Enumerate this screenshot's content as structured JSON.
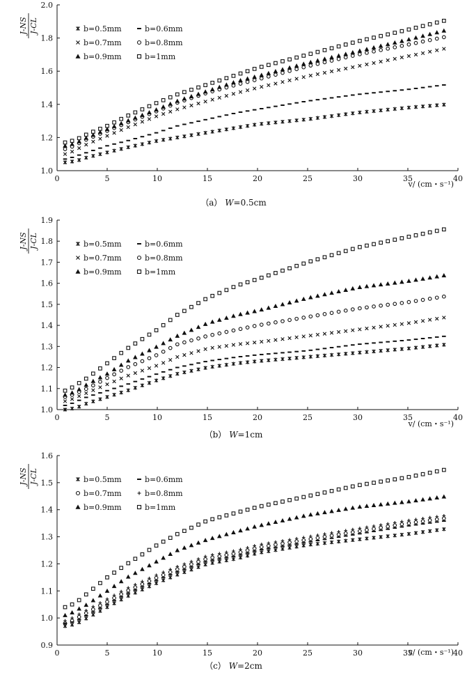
{
  "chart_data": [
    {
      "type": "scatter",
      "panel": "a",
      "caption_label": "（a）",
      "caption_var": "W",
      "caption_value": "=0.5cm",
      "ylabel_num": "J-NS",
      "ylabel_den": "J-CL",
      "xlabel": "v/ (cm・s⁻¹)",
      "xlim": [
        0,
        40
      ],
      "ylim": [
        1.0,
        2.0
      ],
      "xticks": [
        "0",
        "5",
        "10",
        "15",
        "20",
        "25",
        "30",
        "35",
        "40"
      ],
      "yticks": [
        "1.0",
        "1.2",
        "1.4",
        "1.6",
        "1.8",
        "2.0"
      ],
      "ytick_values": [
        1.0,
        1.2,
        1.4,
        1.6,
        1.8,
        2.0
      ],
      "legend_position": "top-left",
      "legend_columns": 2,
      "series": [
        {
          "name": "b=0.5mm",
          "marker": "asterisk",
          "x": [
            1,
            2,
            3,
            5,
            7,
            10,
            12,
            15,
            18,
            20,
            25,
            30,
            35,
            39
          ],
          "y": [
            1.05,
            1.06,
            1.08,
            1.11,
            1.14,
            1.18,
            1.2,
            1.23,
            1.26,
            1.28,
            1.31,
            1.35,
            1.38,
            1.4
          ]
        },
        {
          "name": "b=0.6mm",
          "marker": "dash",
          "x": [
            1,
            2,
            3,
            5,
            7,
            10,
            12,
            15,
            18,
            20,
            25,
            30,
            35,
            39
          ],
          "y": [
            1.07,
            1.09,
            1.11,
            1.15,
            1.18,
            1.23,
            1.27,
            1.31,
            1.35,
            1.37,
            1.42,
            1.46,
            1.49,
            1.52
          ]
        },
        {
          "name": "b=0.7mm",
          "marker": "cross",
          "x": [
            1,
            2,
            3,
            5,
            7,
            10,
            12,
            15,
            18,
            20,
            25,
            30,
            35,
            39
          ],
          "y": [
            1.1,
            1.13,
            1.16,
            1.21,
            1.26,
            1.33,
            1.37,
            1.42,
            1.47,
            1.5,
            1.57,
            1.63,
            1.69,
            1.74
          ]
        },
        {
          "name": "b=0.8mm",
          "marker": "circle",
          "x": [
            1,
            2,
            3,
            5,
            7,
            10,
            12,
            15,
            18,
            20,
            25,
            30,
            35,
            39
          ],
          "y": [
            1.13,
            1.16,
            1.19,
            1.24,
            1.29,
            1.36,
            1.41,
            1.47,
            1.52,
            1.55,
            1.63,
            1.7,
            1.76,
            1.81
          ]
        },
        {
          "name": "b=0.9mm",
          "marker": "triangle",
          "x": [
            1,
            2,
            3,
            5,
            7,
            10,
            12,
            15,
            18,
            20,
            25,
            30,
            35,
            39
          ],
          "y": [
            1.15,
            1.17,
            1.2,
            1.25,
            1.3,
            1.37,
            1.42,
            1.48,
            1.54,
            1.57,
            1.65,
            1.72,
            1.79,
            1.85
          ]
        },
        {
          "name": "b=1mm",
          "marker": "square",
          "x": [
            1,
            2,
            3,
            5,
            7,
            10,
            12,
            15,
            18,
            20,
            25,
            30,
            35,
            39
          ],
          "y": [
            1.17,
            1.19,
            1.22,
            1.27,
            1.33,
            1.41,
            1.46,
            1.52,
            1.58,
            1.62,
            1.7,
            1.78,
            1.85,
            1.91
          ]
        }
      ]
    },
    {
      "type": "scatter",
      "panel": "b",
      "caption_label": "（b）",
      "caption_var": "W",
      "caption_value": "=1cm",
      "ylabel_num": "J-NS",
      "ylabel_den": "J-CL",
      "xlabel": "v/ (cm・s⁻¹)",
      "xlim": [
        0,
        40
      ],
      "ylim": [
        1.0,
        1.9
      ],
      "xticks": [
        "0",
        "5",
        "10",
        "15",
        "20",
        "25",
        "30",
        "35",
        "40"
      ],
      "yticks": [
        "1.0",
        "1.1",
        "1.2",
        "1.3",
        "1.4",
        "1.5",
        "1.6",
        "1.7",
        "1.8",
        "1.9"
      ],
      "ytick_values": [
        1.0,
        1.1,
        1.2,
        1.3,
        1.4,
        1.5,
        1.6,
        1.7,
        1.8,
        1.9
      ],
      "legend_position": "top-left",
      "legend_columns": 2,
      "series": [
        {
          "name": "b=0.5mm",
          "marker": "asterisk",
          "x": [
            1,
            2,
            3,
            5,
            7,
            10,
            12,
            15,
            18,
            20,
            25,
            30,
            35,
            39
          ],
          "y": [
            1.0,
            1.01,
            1.03,
            1.06,
            1.09,
            1.14,
            1.17,
            1.2,
            1.22,
            1.23,
            1.25,
            1.27,
            1.29,
            1.31
          ]
        },
        {
          "name": "b=0.6mm",
          "marker": "dash",
          "x": [
            1,
            2,
            3,
            5,
            7,
            10,
            12,
            15,
            18,
            20,
            25,
            30,
            35,
            39
          ],
          "y": [
            1.02,
            1.04,
            1.06,
            1.09,
            1.12,
            1.17,
            1.2,
            1.23,
            1.25,
            1.26,
            1.28,
            1.31,
            1.33,
            1.35
          ]
        },
        {
          "name": "b=0.7mm",
          "marker": "cross",
          "x": [
            1,
            2,
            3,
            5,
            7,
            10,
            12,
            15,
            18,
            20,
            25,
            30,
            35,
            39
          ],
          "y": [
            1.04,
            1.06,
            1.08,
            1.12,
            1.16,
            1.21,
            1.25,
            1.29,
            1.31,
            1.32,
            1.35,
            1.38,
            1.41,
            1.44
          ]
        },
        {
          "name": "b=0.8mm",
          "marker": "circle",
          "x": [
            1,
            2,
            3,
            5,
            7,
            10,
            12,
            15,
            18,
            20,
            25,
            30,
            35,
            39
          ],
          "y": [
            1.06,
            1.08,
            1.1,
            1.15,
            1.2,
            1.26,
            1.31,
            1.35,
            1.38,
            1.4,
            1.44,
            1.48,
            1.51,
            1.54
          ]
        },
        {
          "name": "b=0.9mm",
          "marker": "triangle",
          "x": [
            1,
            2,
            3,
            5,
            7,
            10,
            12,
            15,
            18,
            20,
            25,
            30,
            35,
            39
          ],
          "y": [
            1.07,
            1.09,
            1.12,
            1.17,
            1.23,
            1.3,
            1.35,
            1.41,
            1.45,
            1.47,
            1.53,
            1.58,
            1.61,
            1.64
          ]
        },
        {
          "name": "b=1mm",
          "marker": "square",
          "x": [
            1,
            2,
            3,
            5,
            7,
            10,
            12,
            15,
            18,
            20,
            25,
            30,
            35,
            39
          ],
          "y": [
            1.09,
            1.12,
            1.15,
            1.22,
            1.29,
            1.38,
            1.45,
            1.53,
            1.59,
            1.62,
            1.7,
            1.77,
            1.82,
            1.86
          ]
        }
      ]
    },
    {
      "type": "scatter",
      "panel": "c",
      "caption_label": "（c）",
      "caption_var": "W",
      "caption_value": "=2cm",
      "ylabel_num": "J-NS",
      "ylabel_den": "J-CL",
      "xlabel": "v/ (cm・s⁻¹)",
      "xlim": [
        0,
        40
      ],
      "ylim": [
        0.9,
        1.6
      ],
      "xticks": [
        "0",
        "5",
        "10",
        "15",
        "20",
        "25",
        "30",
        "35",
        "40"
      ],
      "yticks": [
        "0.9",
        "1.0",
        "1.1",
        "1.2",
        "1.3",
        "1.4",
        "1.5",
        "1.6"
      ],
      "ytick_values": [
        0.9,
        1.0,
        1.1,
        1.2,
        1.3,
        1.4,
        1.5,
        1.6
      ],
      "legend_position": "top-left",
      "legend_columns": 2,
      "series": [
        {
          "name": "b=0.5mm",
          "marker": "asterisk",
          "x": [
            1,
            2,
            3,
            5,
            7,
            10,
            12,
            15,
            18,
            20,
            25,
            30,
            35,
            39
          ],
          "y": [
            0.97,
            0.98,
            1.0,
            1.04,
            1.08,
            1.13,
            1.16,
            1.2,
            1.22,
            1.24,
            1.27,
            1.29,
            1.31,
            1.33
          ]
        },
        {
          "name": "b=0.6mm",
          "marker": "dash",
          "x": [
            1,
            2,
            3,
            5,
            7,
            10,
            12,
            15,
            18,
            20,
            25,
            30,
            35,
            39
          ],
          "y": [
            0.98,
            0.99,
            1.01,
            1.05,
            1.09,
            1.14,
            1.17,
            1.21,
            1.23,
            1.25,
            1.28,
            1.31,
            1.34,
            1.36
          ]
        },
        {
          "name": "b=0.7mm",
          "marker": "circle",
          "x": [
            1,
            2,
            3,
            5,
            7,
            10,
            12,
            15,
            18,
            20,
            25,
            30,
            35,
            39
          ],
          "y": [
            0.98,
            1.0,
            1.02,
            1.06,
            1.1,
            1.15,
            1.18,
            1.22,
            1.24,
            1.26,
            1.29,
            1.32,
            1.35,
            1.37
          ]
        },
        {
          "name": "b=0.8mm",
          "marker": "plus",
          "x": [
            1,
            2,
            3,
            5,
            7,
            10,
            12,
            15,
            18,
            20,
            25,
            30,
            35,
            39
          ],
          "y": [
            0.99,
            1.01,
            1.03,
            1.07,
            1.11,
            1.16,
            1.19,
            1.23,
            1.25,
            1.27,
            1.3,
            1.33,
            1.36,
            1.38
          ]
        },
        {
          "name": "b=0.9mm",
          "marker": "triangle",
          "x": [
            1,
            2,
            3,
            5,
            7,
            10,
            12,
            15,
            18,
            20,
            25,
            30,
            35,
            39
          ],
          "y": [
            1.01,
            1.03,
            1.05,
            1.1,
            1.15,
            1.21,
            1.25,
            1.29,
            1.32,
            1.34,
            1.38,
            1.41,
            1.43,
            1.45
          ]
        },
        {
          "name": "b=1mm",
          "marker": "square",
          "x": [
            1,
            2,
            3,
            5,
            7,
            10,
            12,
            15,
            18,
            20,
            25,
            30,
            35,
            39
          ],
          "y": [
            1.04,
            1.06,
            1.09,
            1.15,
            1.2,
            1.27,
            1.31,
            1.36,
            1.39,
            1.41,
            1.45,
            1.49,
            1.52,
            1.55
          ]
        }
      ]
    }
  ]
}
